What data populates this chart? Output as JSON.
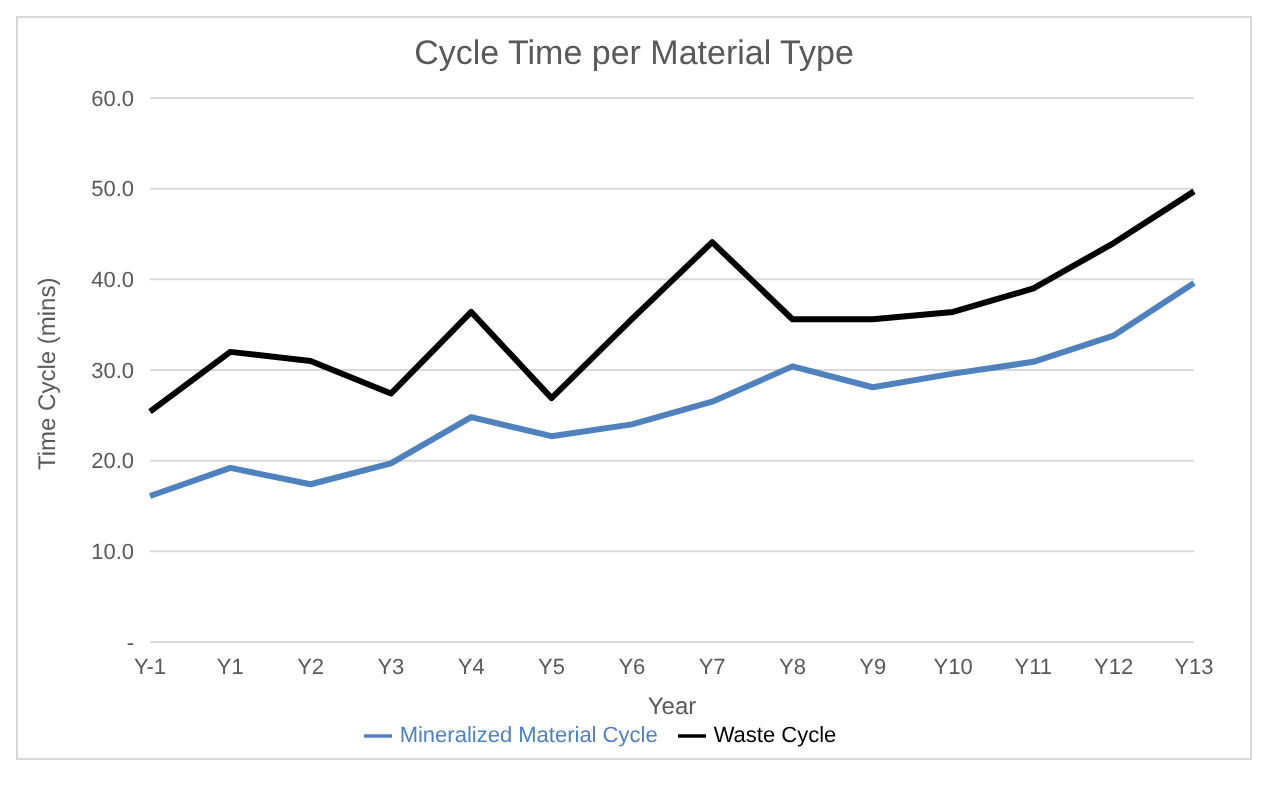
{
  "chart_data": {
    "type": "line",
    "title": "Cycle Time per Material Type",
    "xlabel": "Year",
    "ylabel": "Time Cycle (mins)",
    "categories": [
      "Y-1",
      "Y1",
      "Y2",
      "Y3",
      "Y4",
      "Y5",
      "Y6",
      "Y7",
      "Y8",
      "Y9",
      "Y10",
      "Y11",
      "Y12",
      "Y13"
    ],
    "series": [
      {
        "name": "Mineralized Material  Cycle",
        "color": "#4f81bd",
        "values": [
          16.1,
          19.2,
          17.4,
          19.7,
          24.8,
          22.7,
          24.0,
          26.5,
          30.4,
          28.1,
          29.6,
          30.9,
          33.8,
          39.6
        ]
      },
      {
        "name": "Waste Cycle",
        "color": "#000000",
        "values": [
          25.4,
          32.0,
          31.0,
          27.4,
          36.4,
          26.9,
          35.6,
          44.1,
          35.6,
          35.6,
          36.4,
          39.0,
          44.0,
          49.7
        ]
      }
    ],
    "ylim": [
      0,
      60
    ],
    "yticks": [
      {
        "value": 0,
        "label": "-"
      },
      {
        "value": 10,
        "label": "10.0"
      },
      {
        "value": 20,
        "label": "20.0"
      },
      {
        "value": 30,
        "label": "30.0"
      },
      {
        "value": 40,
        "label": "40.0"
      },
      {
        "value": 50,
        "label": "50.0"
      },
      {
        "value": 60,
        "label": "60.0"
      }
    ],
    "grid": "y",
    "legend": "bottom",
    "marker": "none",
    "line_style": "solid"
  }
}
